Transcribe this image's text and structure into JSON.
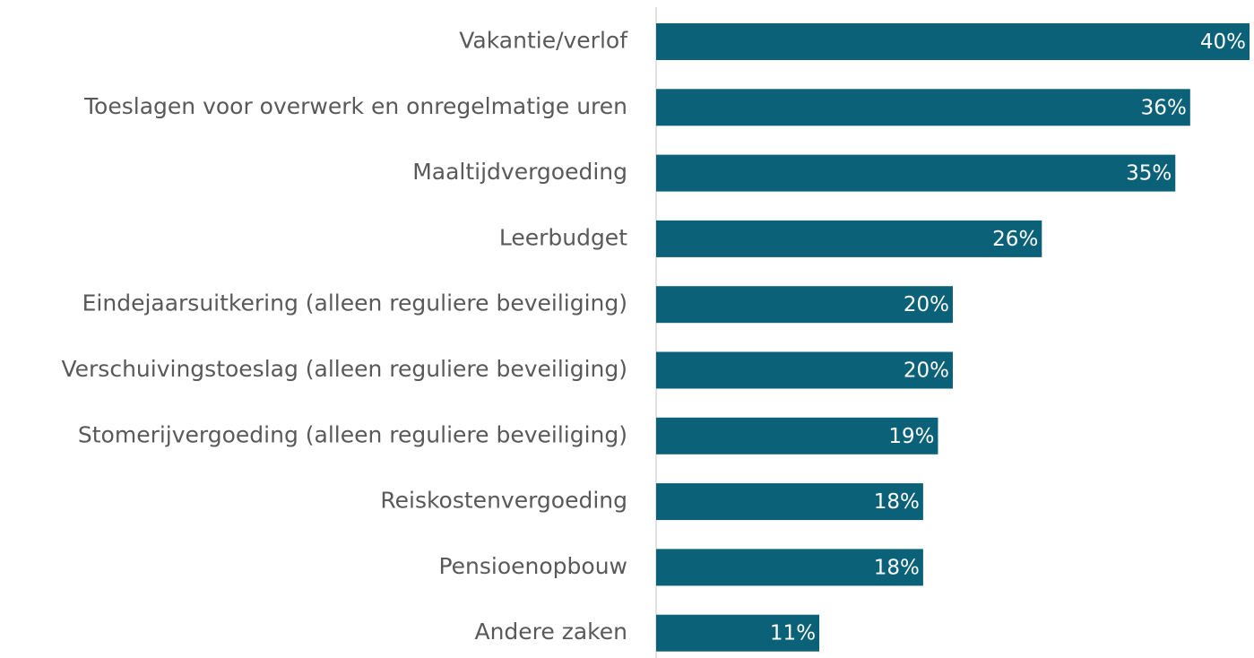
{
  "chart_data": {
    "type": "bar",
    "orientation": "horizontal",
    "categories": [
      "Vakantie/verlof",
      "Toeslagen voor overwerk en onregelmatige uren",
      "Maaltijdvergoeding",
      "Leerbudget",
      "Eindejaarsuitkering (alleen reguliere beveiliging)",
      "Verschuivingstoeslag (alleen reguliere beveiliging)",
      "Stomerijvergoeding (alleen reguliere beveiliging)",
      "Reiskostenvergoeding",
      "Pensioenopbouw",
      "Andere zaken"
    ],
    "values": [
      40,
      36,
      35,
      26,
      20,
      20,
      19,
      18,
      18,
      11
    ],
    "value_labels": [
      "40%",
      "36%",
      "35%",
      "26%",
      "20%",
      "20%",
      "19%",
      "18%",
      "18%",
      "11%"
    ],
    "color": "#0b6278"
  }
}
